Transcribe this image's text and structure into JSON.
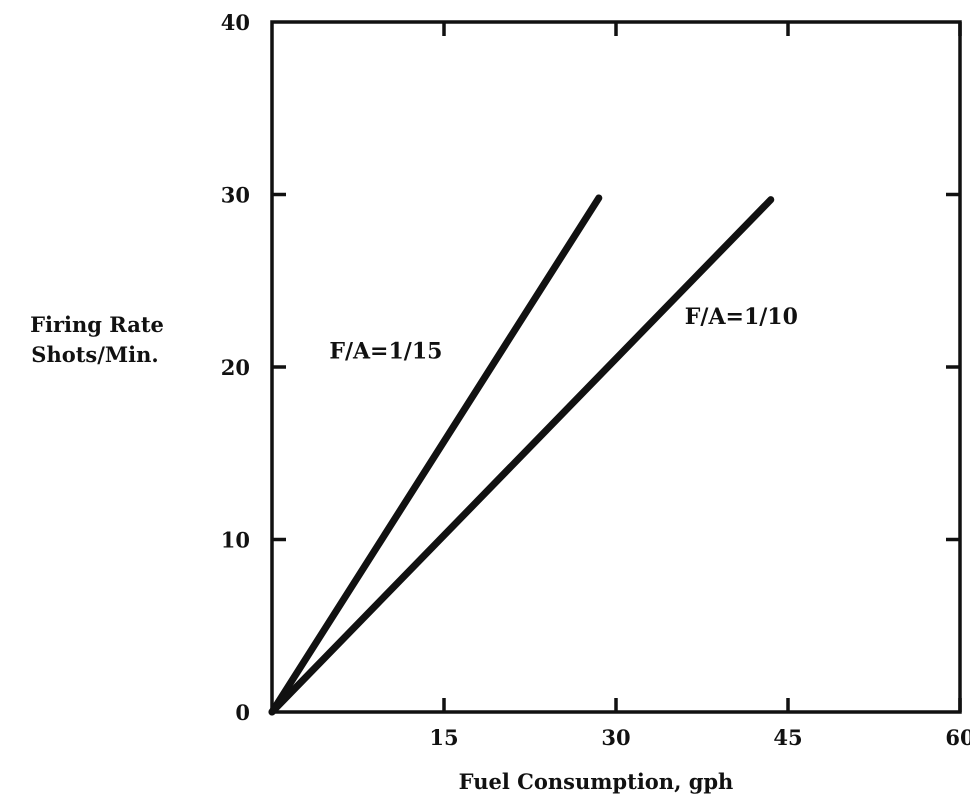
{
  "chart_data": {
    "type": "line",
    "title": "",
    "xlabel": "Fuel Consumption, gph",
    "ylabel_line1": "Firing Rate",
    "ylabel_line2": "Shots/Min.",
    "xlim": [
      0,
      60
    ],
    "ylim": [
      0,
      40
    ],
    "x_ticks": [
      15,
      30,
      45,
      60
    ],
    "y_ticks": [
      0,
      10,
      20,
      30,
      40
    ],
    "grid": false,
    "legend": "none",
    "series": [
      {
        "name": "F/A=1/15",
        "x": [
          0,
          28.5
        ],
        "y": [
          0,
          29.8
        ],
        "label_at": [
          5.0,
          20.5
        ]
      },
      {
        "name": "F/A=1/10",
        "x": [
          0,
          43.5
        ],
        "y": [
          0,
          29.7
        ],
        "label_at": [
          36.0,
          22.5
        ]
      }
    ]
  }
}
